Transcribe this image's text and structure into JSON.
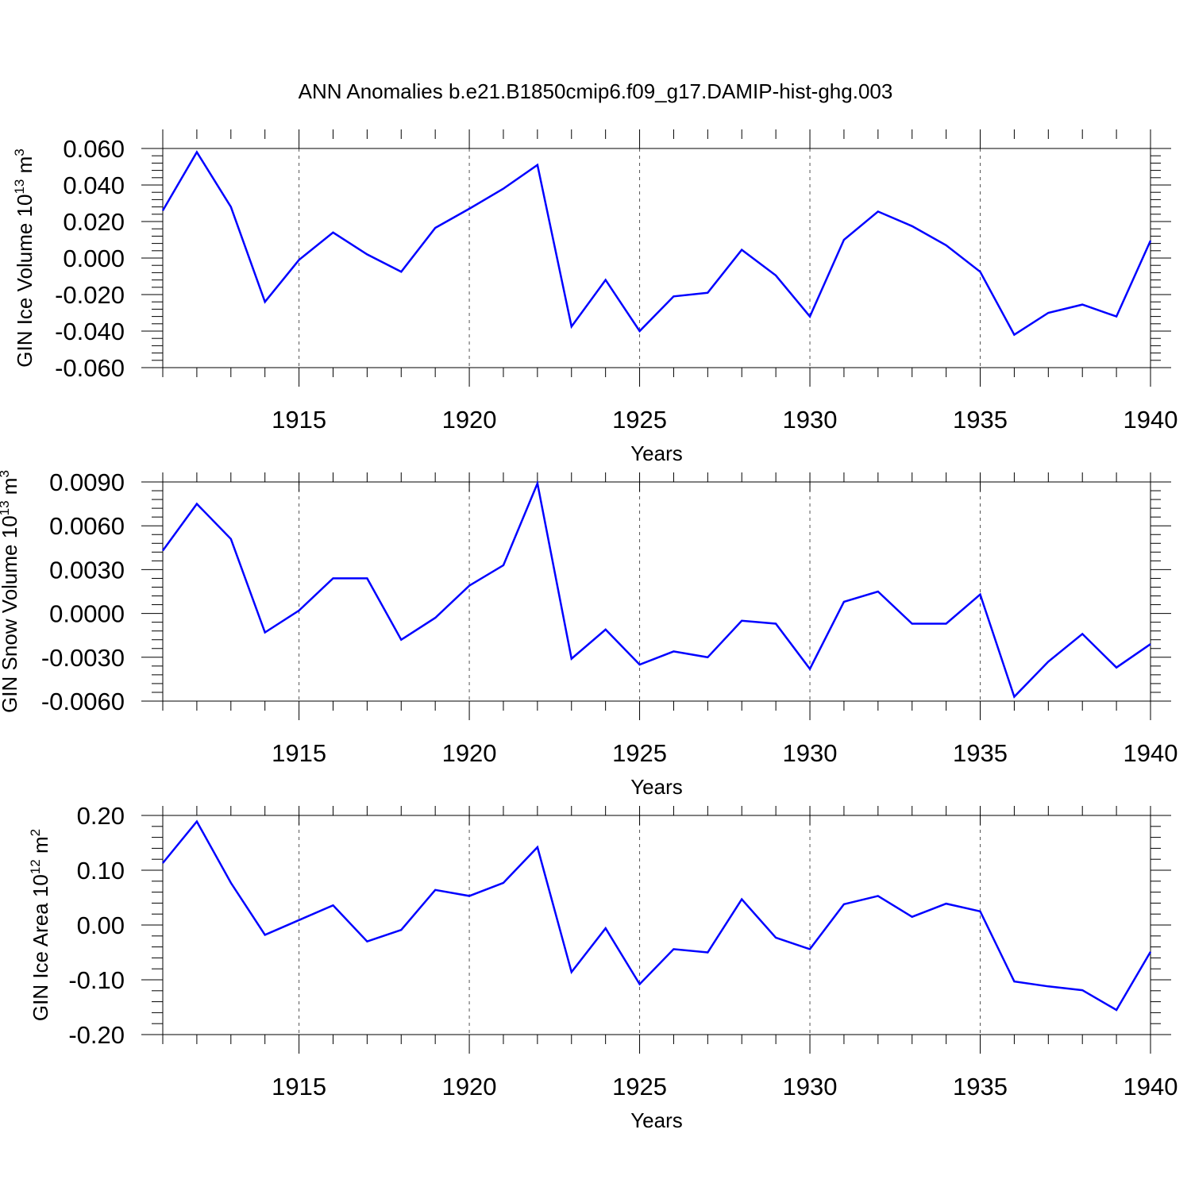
{
  "title": "ANN Anomalies b.e21.B1850cmip6.f09_g17.DAMIP-hist-ghg.003",
  "colors": {
    "line": "#0000ff",
    "axis": "#000000",
    "grid": "#555555"
  },
  "chart_data": [
    {
      "type": "line",
      "ylabel": {
        "text": "GIN Ice Volume 10",
        "sup": "13",
        "unit": "m",
        "unit_sup": "3"
      },
      "xlabel": "Years",
      "xlim": [
        1911,
        1940
      ],
      "ylim": [
        -0.06,
        0.06
      ],
      "xticks": [
        "1915",
        "1920",
        "1925",
        "1930",
        "1935",
        "1940"
      ],
      "yticks": [
        "0.060",
        "0.040",
        "0.020",
        "0.000",
        "-0.020",
        "-0.040",
        "-0.060"
      ],
      "ytick_values": [
        0.06,
        0.04,
        0.02,
        0.0,
        -0.02,
        -0.04,
        -0.06
      ],
      "grid": "dashed vertical at major x ticks",
      "x": [
        1911,
        1912,
        1913,
        1914,
        1915,
        1916,
        1917,
        1918,
        1919,
        1920,
        1921,
        1922,
        1923,
        1924,
        1925,
        1926,
        1927,
        1928,
        1929,
        1930,
        1931,
        1932,
        1933,
        1934,
        1935,
        1936,
        1937,
        1938,
        1939,
        1940
      ],
      "series": [
        {
          "values": [
            0.026,
            0.058,
            0.028,
            -0.024,
            -0.001,
            0.014,
            0.002,
            -0.0075,
            0.0165,
            0.027,
            0.038,
            0.051,
            -0.0375,
            -0.012,
            -0.04,
            -0.021,
            -0.019,
            0.0045,
            -0.0095,
            -0.032,
            0.01,
            0.0255,
            0.0175,
            0.007,
            -0.0075,
            -0.042,
            -0.03,
            -0.0255,
            -0.032,
            0.0095
          ]
        }
      ]
    },
    {
      "type": "line",
      "ylabel": {
        "text": "GIN Snow Volume 10",
        "sup": "13",
        "unit": "m",
        "unit_sup": "3"
      },
      "xlabel": "Years",
      "xlim": [
        1911,
        1940
      ],
      "ylim": [
        -0.006,
        0.009
      ],
      "xticks": [
        "1915",
        "1920",
        "1925",
        "1930",
        "1935",
        "1940"
      ],
      "yticks": [
        "0.0090",
        "0.0060",
        "0.0030",
        "0.0000",
        "-0.0030",
        "-0.0060"
      ],
      "ytick_values": [
        0.009,
        0.006,
        0.003,
        0.0,
        -0.003,
        -0.006
      ],
      "grid": "dashed vertical at major x ticks",
      "x": [
        1911,
        1912,
        1913,
        1914,
        1915,
        1916,
        1917,
        1918,
        1919,
        1920,
        1921,
        1922,
        1923,
        1924,
        1925,
        1926,
        1927,
        1928,
        1929,
        1930,
        1931,
        1932,
        1933,
        1934,
        1935,
        1936,
        1937,
        1938,
        1939,
        1940
      ],
      "series": [
        {
          "values": [
            0.0043,
            0.0075,
            0.0051,
            -0.0013,
            0.0002,
            0.0024,
            0.0024,
            -0.0018,
            -0.0003,
            0.0019,
            0.0033,
            0.0089,
            -0.0031,
            -0.0011,
            -0.0035,
            -0.0026,
            -0.003,
            -0.0005,
            -0.0007,
            -0.0038,
            0.0008,
            0.0015,
            -0.0007,
            -0.0007,
            0.0013,
            -0.0057,
            -0.0033,
            -0.0014,
            -0.0037,
            -0.0021
          ]
        }
      ]
    },
    {
      "type": "line",
      "ylabel": {
        "text": "GIN Ice Area 10",
        "sup": "12",
        "unit": "m",
        "unit_sup": "2"
      },
      "xlabel": "Years",
      "xlim": [
        1911,
        1940
      ],
      "ylim": [
        -0.2,
        0.2
      ],
      "xticks": [
        "1915",
        "1920",
        "1925",
        "1930",
        "1935",
        "1940"
      ],
      "yticks": [
        "0.20",
        "0.10",
        "0.00",
        "-0.10",
        "-0.20"
      ],
      "ytick_values": [
        0.2,
        0.1,
        0.0,
        -0.1,
        -0.2
      ],
      "grid": "dashed vertical at major x ticks",
      "x": [
        1911,
        1912,
        1913,
        1914,
        1915,
        1916,
        1917,
        1918,
        1919,
        1920,
        1921,
        1922,
        1923,
        1924,
        1925,
        1926,
        1927,
        1928,
        1929,
        1930,
        1931,
        1932,
        1933,
        1934,
        1935,
        1936,
        1937,
        1938,
        1939,
        1940
      ],
      "series": [
        {
          "values": [
            0.113,
            0.189,
            0.077,
            -0.018,
            0.009,
            0.036,
            -0.03,
            -0.009,
            0.064,
            0.053,
            0.077,
            0.142,
            -0.086,
            -0.006,
            -0.108,
            -0.044,
            -0.05,
            0.047,
            -0.023,
            -0.044,
            0.038,
            0.053,
            0.015,
            0.039,
            0.025,
            -0.103,
            -0.112,
            -0.119,
            -0.155,
            -0.049
          ]
        }
      ]
    }
  ]
}
